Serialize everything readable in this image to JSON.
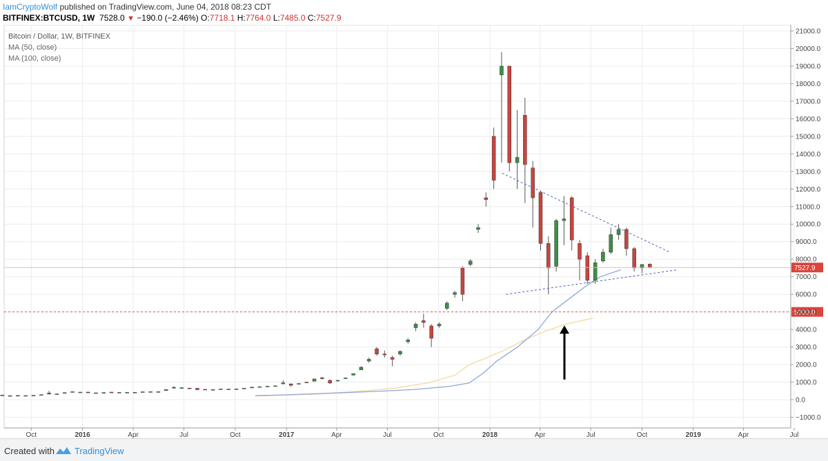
{
  "header": {
    "author": "IamCryptoWolf",
    "published_text": "published on TradingView.com, June 04, 2018 08:23 CDT",
    "symbol": "BITFINEX:BTCUSD, 1W",
    "last": "7528.0",
    "change": "−190.0 (−2.46%)",
    "open_label": "O:",
    "open": "7718.1",
    "high_label": "H:",
    "high": "7764.0",
    "low_label": "L:",
    "low": "7485.0",
    "close_label": "C:",
    "close": "7527.9"
  },
  "footer": {
    "created_with": "Created with",
    "brand": "TradingView"
  },
  "colors": {
    "up": "#3c8f47",
    "down": "#c9453f",
    "ma50": "#8fa6d8",
    "ma100": "#f2d9a0",
    "trend": "#4a5fc9",
    "hline": "#e05555",
    "price_line": "#f0b7b0"
  },
  "chart_data": {
    "type": "candlestick",
    "legend": [
      "Bitcoin / Dollar, 1W, BITFINEX",
      "MA (50, close)",
      "MA (100, close)"
    ],
    "yticks": [
      -1000,
      0,
      1000,
      2000,
      3000,
      4000,
      5000,
      6000,
      7000,
      8000,
      9000,
      10000,
      11000,
      12000,
      13000,
      14000,
      15000,
      16000,
      17000,
      18000,
      19000,
      20000,
      21000
    ],
    "xticks": [
      {
        "label": "Oct",
        "date": "2015-10-01",
        "bold": false
      },
      {
        "label": "2016",
        "date": "2016-01-01",
        "bold": true
      },
      {
        "label": "Apr",
        "date": "2016-04-01",
        "bold": false
      },
      {
        "label": "Jul",
        "date": "2016-07-01",
        "bold": false
      },
      {
        "label": "Oct",
        "date": "2016-10-01",
        "bold": false
      },
      {
        "label": "2017",
        "date": "2017-01-01",
        "bold": true
      },
      {
        "label": "Apr",
        "date": "2017-04-01",
        "bold": false
      },
      {
        "label": "Jul",
        "date": "2017-07-01",
        "bold": false
      },
      {
        "label": "Oct",
        "date": "2017-10-01",
        "bold": false
      },
      {
        "label": "2018",
        "date": "2018-01-01",
        "bold": true
      },
      {
        "label": "Apr",
        "date": "2018-04-01",
        "bold": false
      },
      {
        "label": "Jul",
        "date": "2018-07-01",
        "bold": false
      },
      {
        "label": "Oct",
        "date": "2018-10-01",
        "bold": false
      },
      {
        "label": "2019",
        "date": "2019-01-01",
        "bold": true
      },
      {
        "label": "Apr",
        "date": "2019-04-01",
        "bold": false
      },
      {
        "label": "Jul",
        "date": "2019-07-01",
        "bold": false
      }
    ],
    "candles": [
      {
        "t": "2015-08-10",
        "o": 265,
        "h": 280,
        "l": 250,
        "c": 260
      },
      {
        "t": "2015-08-24",
        "o": 230,
        "h": 245,
        "l": 200,
        "c": 228
      },
      {
        "t": "2015-09-07",
        "o": 240,
        "h": 250,
        "l": 230,
        "c": 235
      },
      {
        "t": "2015-09-21",
        "o": 232,
        "h": 240,
        "l": 225,
        "c": 236
      },
      {
        "t": "2015-10-05",
        "o": 238,
        "h": 250,
        "l": 235,
        "c": 245
      },
      {
        "t": "2015-10-19",
        "o": 265,
        "h": 290,
        "l": 260,
        "c": 285
      },
      {
        "t": "2015-11-02",
        "o": 320,
        "h": 500,
        "l": 300,
        "c": 380
      },
      {
        "t": "2015-11-16",
        "o": 330,
        "h": 340,
        "l": 300,
        "c": 325
      },
      {
        "t": "2015-11-30",
        "o": 380,
        "h": 420,
        "l": 360,
        "c": 400
      },
      {
        "t": "2015-12-14",
        "o": 440,
        "h": 470,
        "l": 420,
        "c": 455
      },
      {
        "t": "2015-12-28",
        "o": 430,
        "h": 440,
        "l": 410,
        "c": 430
      },
      {
        "t": "2016-01-11",
        "o": 430,
        "h": 450,
        "l": 380,
        "c": 390
      },
      {
        "t": "2016-01-25",
        "o": 390,
        "h": 400,
        "l": 370,
        "c": 380
      },
      {
        "t": "2016-02-08",
        "o": 375,
        "h": 410,
        "l": 370,
        "c": 405
      },
      {
        "t": "2016-02-22",
        "o": 430,
        "h": 440,
        "l": 410,
        "c": 420
      },
      {
        "t": "2016-03-07",
        "o": 412,
        "h": 420,
        "l": 400,
        "c": 415
      },
      {
        "t": "2016-03-21",
        "o": 412,
        "h": 420,
        "l": 405,
        "c": 416
      },
      {
        "t": "2016-04-04",
        "o": 420,
        "h": 425,
        "l": 415,
        "c": 422
      },
      {
        "t": "2016-04-18",
        "o": 430,
        "h": 460,
        "l": 425,
        "c": 450
      },
      {
        "t": "2016-05-02",
        "o": 450,
        "h": 460,
        "l": 440,
        "c": 455
      },
      {
        "t": "2016-05-16",
        "o": 455,
        "h": 460,
        "l": 440,
        "c": 445
      },
      {
        "t": "2016-05-30",
        "o": 520,
        "h": 580,
        "l": 510,
        "c": 575
      },
      {
        "t": "2016-06-13",
        "o": 690,
        "h": 780,
        "l": 620,
        "c": 700
      },
      {
        "t": "2016-06-27",
        "o": 650,
        "h": 700,
        "l": 630,
        "c": 680
      },
      {
        "t": "2016-07-11",
        "o": 660,
        "h": 670,
        "l": 640,
        "c": 655
      },
      {
        "t": "2016-07-25",
        "o": 650,
        "h": 660,
        "l": 540,
        "c": 570
      },
      {
        "t": "2016-08-08",
        "o": 590,
        "h": 600,
        "l": 570,
        "c": 580
      },
      {
        "t": "2016-08-22",
        "o": 575,
        "h": 585,
        "l": 565,
        "c": 578
      },
      {
        "t": "2016-09-05",
        "o": 605,
        "h": 615,
        "l": 595,
        "c": 610
      },
      {
        "t": "2016-09-19",
        "o": 600,
        "h": 610,
        "l": 595,
        "c": 605
      },
      {
        "t": "2016-10-03",
        "o": 610,
        "h": 620,
        "l": 605,
        "c": 615
      },
      {
        "t": "2016-10-17",
        "o": 640,
        "h": 660,
        "l": 635,
        "c": 655
      },
      {
        "t": "2016-10-31",
        "o": 700,
        "h": 740,
        "l": 690,
        "c": 710
      },
      {
        "t": "2016-11-14",
        "o": 700,
        "h": 750,
        "l": 690,
        "c": 740
      },
      {
        "t": "2016-11-28",
        "o": 750,
        "h": 770,
        "l": 740,
        "c": 765
      },
      {
        "t": "2016-12-12",
        "o": 780,
        "h": 800,
        "l": 770,
        "c": 790
      },
      {
        "t": "2016-12-26",
        "o": 900,
        "h": 1100,
        "l": 880,
        "c": 960
      },
      {
        "t": "2017-01-09",
        "o": 900,
        "h": 910,
        "l": 750,
        "c": 820
      },
      {
        "t": "2017-01-23",
        "o": 900,
        "h": 930,
        "l": 890,
        "c": 920
      },
      {
        "t": "2017-02-06",
        "o": 1000,
        "h": 1010,
        "l": 970,
        "c": 990
      },
      {
        "t": "2017-02-20",
        "o": 1050,
        "h": 1200,
        "l": 1040,
        "c": 1180
      },
      {
        "t": "2017-03-06",
        "o": 1250,
        "h": 1300,
        "l": 1150,
        "c": 1200
      },
      {
        "t": "2017-03-20",
        "o": 1100,
        "h": 1150,
        "l": 890,
        "c": 950
      },
      {
        "t": "2017-04-03",
        "o": 1080,
        "h": 1120,
        "l": 1050,
        "c": 1100
      },
      {
        "t": "2017-04-17",
        "o": 1200,
        "h": 1250,
        "l": 1180,
        "c": 1240
      },
      {
        "t": "2017-05-01",
        "o": 1400,
        "h": 1500,
        "l": 1380,
        "c": 1480
      },
      {
        "t": "2017-05-15",
        "o": 1700,
        "h": 1900,
        "l": 1690,
        "c": 1850
      },
      {
        "t": "2017-05-29",
        "o": 2200,
        "h": 2400,
        "l": 2100,
        "c": 2300
      },
      {
        "t": "2017-06-12",
        "o": 2900,
        "h": 3000,
        "l": 2500,
        "c": 2600
      },
      {
        "t": "2017-06-26",
        "o": 2600,
        "h": 2800,
        "l": 2400,
        "c": 2550
      },
      {
        "t": "2017-07-10",
        "o": 2400,
        "h": 2500,
        "l": 1900,
        "c": 2300
      },
      {
        "t": "2017-07-24",
        "o": 2600,
        "h": 2800,
        "l": 2500,
        "c": 2750
      },
      {
        "t": "2017-08-07",
        "o": 3300,
        "h": 3500,
        "l": 3200,
        "c": 3400
      },
      {
        "t": "2017-08-21",
        "o": 4100,
        "h": 4400,
        "l": 3900,
        "c": 4300
      },
      {
        "t": "2017-09-04",
        "o": 4500,
        "h": 4900,
        "l": 4100,
        "c": 4400
      },
      {
        "t": "2017-09-18",
        "o": 4200,
        "h": 4300,
        "l": 3000,
        "c": 3500
      },
      {
        "t": "2017-10-02",
        "o": 4200,
        "h": 4400,
        "l": 4100,
        "c": 4300
      },
      {
        "t": "2017-10-16",
        "o": 5200,
        "h": 5600,
        "l": 5100,
        "c": 5500
      },
      {
        "t": "2017-10-30",
        "o": 6000,
        "h": 6200,
        "l": 5800,
        "c": 6100
      },
      {
        "t": "2017-11-13",
        "o": 7500,
        "h": 7600,
        "l": 5600,
        "c": 6000
      },
      {
        "t": "2017-11-27",
        "o": 7700,
        "h": 8000,
        "l": 7600,
        "c": 7900
      },
      {
        "t": "2017-12-11",
        "o": 9700,
        "h": 10000,
        "l": 9500,
        "c": 9800
      },
      {
        "t": "2017-12-25",
        "o": 11500,
        "h": 11800,
        "l": 11000,
        "c": 11400
      },
      {
        "t": "2018-01-08",
        "o": 15000,
        "h": 15500,
        "l": 12000,
        "c": 12500
      },
      {
        "t": "2018-01-22",
        "o": 18500,
        "h": 19800,
        "l": 13500,
        "c": 19000
      },
      {
        "t": "2018-02-05",
        "o": 19000,
        "h": 19000,
        "l": 13000,
        "c": 13500
      },
      {
        "t": "2018-02-19",
        "o": 13500,
        "h": 16500,
        "l": 12000,
        "c": 13800
      },
      {
        "t": "2018-03-05",
        "o": 16200,
        "h": 17200,
        "l": 11200,
        "c": 13400
      },
      {
        "t": "2018-03-19",
        "o": 13200,
        "h": 13600,
        "l": 9800,
        "c": 11500
      },
      {
        "t": "2018-04-02",
        "o": 11800,
        "h": 11900,
        "l": 8500,
        "c": 8900
      },
      {
        "t": "2018-04-16",
        "o": 8900,
        "h": 9300,
        "l": 6000,
        "c": 7500
      },
      {
        "t": "2018-04-30",
        "o": 7600,
        "h": 10300,
        "l": 7300,
        "c": 10200
      },
      {
        "t": "2018-05-14",
        "o": 10200,
        "h": 11600,
        "l": 8800,
        "c": 10300
      },
      {
        "t": "2018-05-28",
        "o": 11500,
        "h": 11600,
        "l": 8500,
        "c": 9100
      },
      {
        "t": "2018-06-11",
        "o": 8900,
        "h": 9100,
        "l": 6800,
        "c": 8000
      },
      {
        "t": "2018-06-25",
        "o": 8200,
        "h": 8400,
        "l": 6600,
        "c": 6800
      },
      {
        "t": "2018-07-09",
        "o": 6800,
        "h": 8000,
        "l": 6600,
        "c": 7800
      },
      {
        "t": "2018-07-23",
        "o": 7900,
        "h": 8600,
        "l": 7800,
        "c": 8400
      },
      {
        "t": "2018-08-06",
        "o": 8400,
        "h": 9800,
        "l": 8300,
        "c": 9400
      },
      {
        "t": "2018-08-20",
        "o": 9400,
        "h": 10000,
        "l": 9100,
        "c": 9700
      },
      {
        "t": "2018-09-03",
        "o": 9700,
        "h": 9800,
        "l": 8200,
        "c": 8600
      },
      {
        "t": "2018-09-17",
        "o": 8600,
        "h": 8700,
        "l": 7300,
        "c": 7500
      },
      {
        "t": "2018-10-01",
        "o": 7500,
        "h": 7700,
        "l": 7200,
        "c": 7700
      },
      {
        "t": "2018-10-15",
        "o": 7718.1,
        "h": 7764,
        "l": 7485,
        "c": 7527.9
      }
    ],
    "ma50": [
      [
        370,
        235
      ],
      [
        390,
        250
      ],
      [
        410,
        270
      ],
      [
        450,
        330
      ],
      [
        500,
        400
      ],
      [
        550,
        480
      ],
      [
        600,
        580
      ],
      [
        650,
        750
      ],
      [
        680,
        950
      ],
      [
        700,
        1500
      ],
      [
        720,
        2200
      ],
      [
        750,
        3000
      ],
      [
        780,
        4000
      ],
      [
        800,
        5000
      ],
      [
        830,
        5900
      ],
      [
        850,
        6500
      ],
      [
        870,
        7000
      ],
      [
        900,
        7400
      ]
    ],
    "ma100": [
      [
        370,
        200
      ],
      [
        460,
        320
      ],
      [
        520,
        480
      ],
      [
        570,
        650
      ],
      [
        620,
        950
      ],
      [
        660,
        1400
      ],
      [
        680,
        2000
      ],
      [
        700,
        2300
      ],
      [
        730,
        2800
      ],
      [
        760,
        3400
      ],
      [
        790,
        3900
      ],
      [
        820,
        4300
      ],
      [
        860,
        4650
      ]
    ],
    "trendlines": [
      {
        "from": [
          "2018-01-23",
          12900
        ],
        "to": [
          "2018-11-20",
          8400
        ]
      },
      {
        "from": [
          "2018-01-30",
          6000
        ],
        "to": [
          "2018-12-04",
          7400
        ]
      }
    ],
    "hlines": [
      5000
    ],
    "price_line": 7527.9,
    "price_labels": [
      {
        "value": 7527.9,
        "text": "7527.9"
      },
      {
        "value": 5000,
        "text": "5000.0"
      }
    ],
    "annotation": "up-arrow",
    "ylim": [
      -1000,
      21000
    ]
  }
}
